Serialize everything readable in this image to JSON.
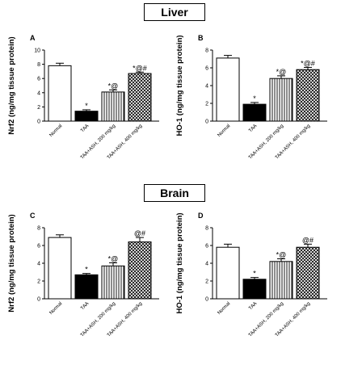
{
  "sections": {
    "liver": "Liver",
    "brain": "Brain"
  },
  "chart_data": [
    {
      "type": "bar",
      "panel": "A",
      "section": "Liver",
      "ylabel": "Nrf2 (ng/mg tissue protein)",
      "ylim": [
        0,
        10
      ],
      "yticks": [
        0,
        2,
        4,
        6,
        8,
        10
      ],
      "categories": [
        "Normal",
        "TAA",
        "TAA+ASH, 200 mg/kg",
        "TAA+ASH, 400 mg/kg"
      ],
      "values": [
        7.8,
        1.4,
        4.1,
        6.7
      ],
      "errors": [
        0.35,
        0.2,
        0.3,
        0.2
      ],
      "annotations": [
        "",
        "*",
        "*@",
        "*@#"
      ],
      "patterns": [
        "white",
        "black",
        "vertical-stripes",
        "crosshatch"
      ]
    },
    {
      "type": "bar",
      "panel": "B",
      "section": "Liver",
      "ylabel": "HO-1 (ng/mg tissue protein)",
      "ylim": [
        0,
        8
      ],
      "yticks": [
        0,
        2,
        4,
        6,
        8
      ],
      "categories": [
        "Normal",
        "TAA",
        "TAA+ASH, 200 mg/kg",
        "TAA+ASH, 400 mg/kg"
      ],
      "values": [
        7.1,
        1.9,
        4.8,
        5.8
      ],
      "errors": [
        0.3,
        0.2,
        0.3,
        0.25
      ],
      "annotations": [
        "",
        "*",
        "*@",
        "*@#"
      ],
      "patterns": [
        "white",
        "black",
        "vertical-stripes",
        "crosshatch"
      ]
    },
    {
      "type": "bar",
      "panel": "C",
      "section": "Brain",
      "ylabel": "Nrf2 (ng/mg tissue protein)",
      "ylim": [
        0,
        8
      ],
      "yticks": [
        0,
        2,
        4,
        6,
        8
      ],
      "categories": [
        "Normal",
        "TAA",
        "TAA+ASH, 200 mg/kg",
        "TAA+ASH, 400 mg/kg"
      ],
      "values": [
        6.9,
        2.7,
        3.7,
        6.4
      ],
      "errors": [
        0.3,
        0.15,
        0.35,
        0.5
      ],
      "annotations": [
        "",
        "*",
        "*@",
        "@#"
      ],
      "patterns": [
        "white",
        "black",
        "vertical-stripes",
        "crosshatch"
      ]
    },
    {
      "type": "bar",
      "panel": "D",
      "section": "Brain",
      "ylabel": "HO-1 (ng/mg tissue protein)",
      "ylim": [
        0,
        8
      ],
      "yticks": [
        0,
        2,
        4,
        6,
        8
      ],
      "categories": [
        "Normal",
        "TAA",
        "TAA+ASH, 200 mg/kg",
        "TAA+ASH, 400 mg/kg"
      ],
      "values": [
        5.8,
        2.2,
        4.2,
        5.8
      ],
      "errors": [
        0.35,
        0.2,
        0.3,
        0.35
      ],
      "annotations": [
        "",
        "*",
        "*@",
        "@#"
      ],
      "patterns": [
        "white",
        "black",
        "vertical-stripes",
        "crosshatch"
      ]
    }
  ]
}
